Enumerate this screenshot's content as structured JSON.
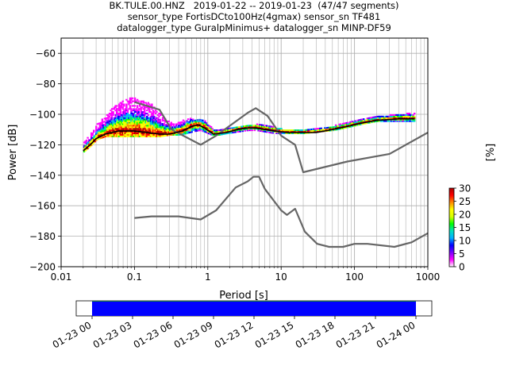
{
  "chart_data": {
    "type": "line",
    "title_lines": [
      "BK.TULE.00.HNZ   2019-01-22 -- 2019-01-23  (47/47 segments)",
      "sensor_type FortisDCto100Hz(4gmax) sensor_sn TF481",
      "datalogger_type GuralpMinimus+ datalogger_sn MINP-DF59"
    ],
    "xlabel": "Period [s]",
    "ylabel": "Power [dB]",
    "x_scale": "log",
    "xlim": [
      0.01,
      1000
    ],
    "ylim": [
      -200,
      -50
    ],
    "x_ticks": [
      0.01,
      0.1,
      1,
      10,
      100,
      1000
    ],
    "x_tick_labels": [
      "0.01",
      "0.1",
      "1",
      "10",
      "100",
      "1000"
    ],
    "y_ticks": [
      -200,
      -180,
      -160,
      -140,
      -120,
      -100,
      -80,
      -60
    ],
    "y_tick_labels": [
      "−200",
      "−180",
      "−160",
      "−140",
      "−120",
      "−100",
      "−80",
      "−60"
    ],
    "grid": true,
    "series": [
      {
        "role": "high-noise-model",
        "color": "#666666",
        "points": [
          [
            0.1,
            -92
          ],
          [
            0.22,
            -97
          ],
          [
            0.32,
            -110
          ],
          [
            0.8,
            -120
          ],
          [
            1.3,
            -114
          ],
          [
            3.5,
            -99
          ],
          [
            4.5,
            -96
          ],
          [
            6.5,
            -101
          ],
          [
            10,
            -114
          ],
          [
            15.5,
            -120
          ],
          [
            20,
            -138
          ],
          [
            80,
            -131
          ],
          [
            300,
            -126
          ],
          [
            1000,
            -112
          ]
        ]
      },
      {
        "role": "low-noise-model",
        "color": "#666666",
        "points": [
          [
            0.1,
            -168
          ],
          [
            0.17,
            -167
          ],
          [
            0.4,
            -167
          ],
          [
            0.8,
            -169
          ],
          [
            1.3,
            -163
          ],
          [
            2.4,
            -148
          ],
          [
            3.5,
            -144
          ],
          [
            4.2,
            -141
          ],
          [
            5,
            -141
          ],
          [
            6,
            -149
          ],
          [
            10,
            -163
          ],
          [
            12,
            -166
          ],
          [
            15.5,
            -162
          ],
          [
            21,
            -177
          ],
          [
            31,
            -185
          ],
          [
            45,
            -187
          ],
          [
            70,
            -187
          ],
          [
            100,
            -185
          ],
          [
            150,
            -185
          ],
          [
            350,
            -187
          ],
          [
            600,
            -184
          ],
          [
            1000,
            -178
          ]
        ]
      },
      {
        "role": "mean-psd",
        "color": "#000000",
        "points": [
          [
            0.02,
            -124
          ],
          [
            0.025,
            -120
          ],
          [
            0.03,
            -116
          ],
          [
            0.04,
            -113
          ],
          [
            0.06,
            -111
          ],
          [
            0.1,
            -111
          ],
          [
            0.15,
            -112
          ],
          [
            0.22,
            -113
          ],
          [
            0.3,
            -113
          ],
          [
            0.45,
            -111
          ],
          [
            0.6,
            -108
          ],
          [
            0.75,
            -107
          ],
          [
            0.9,
            -109
          ],
          [
            1.2,
            -113
          ],
          [
            1.8,
            -112
          ],
          [
            2.5,
            -110
          ],
          [
            3.5,
            -109
          ],
          [
            4.5,
            -109
          ],
          [
            6,
            -110
          ],
          [
            8,
            -111
          ],
          [
            12,
            -112
          ],
          [
            20,
            -112
          ],
          [
            30,
            -112
          ],
          [
            50,
            -110
          ],
          [
            80,
            -108
          ],
          [
            120,
            -106
          ],
          [
            200,
            -104
          ],
          [
            400,
            -103
          ],
          [
            650,
            -103
          ]
        ]
      }
    ],
    "psd_probability_band": {
      "periods": [
        0.02,
        0.025,
        0.03,
        0.04,
        0.05,
        0.06,
        0.08,
        0.1,
        0.13,
        0.17,
        0.22,
        0.3,
        0.4,
        0.5,
        0.6,
        0.75,
        0.9,
        1.1,
        1.4,
        1.8,
        2.5,
        3.5,
        4.5,
        6,
        8,
        12,
        20,
        30,
        50,
        80,
        120,
        200,
        400,
        650
      ],
      "upper_db": [
        -119,
        -113,
        -107,
        -101,
        -96,
        -93,
        -90,
        -90,
        -91,
        -94,
        -100,
        -106,
        -106,
        -103,
        -103,
        -103,
        -105,
        -109,
        -111,
        -110,
        -109,
        -108,
        -107,
        -108,
        -109,
        -111,
        -111,
        -110,
        -108,
        -106,
        -104,
        -102,
        -100,
        -100
      ],
      "lower_db": [
        -125,
        -121,
        -117,
        -115,
        -115,
        -115,
        -115,
        -115,
        -115,
        -115,
        -115,
        -114,
        -114,
        -113,
        -112,
        -111,
        -112,
        -114,
        -114,
        -113,
        -112,
        -111,
        -111,
        -112,
        -113,
        -113,
        -113,
        -112,
        -111,
        -109,
        -107,
        -105,
        -105,
        -105
      ]
    },
    "colorbar": {
      "label": "[%]",
      "range": [
        0,
        30
      ],
      "ticks": [
        0,
        5,
        10,
        15,
        20,
        25,
        30
      ],
      "colors": [
        "#ffffff",
        "#ff00ff",
        "#7a00ff",
        "#0000ff",
        "#00b0ff",
        "#00e0c0",
        "#00ff00",
        "#d8ff00",
        "#ffff00",
        "#ff8800",
        "#ff0000",
        "#aa0000"
      ]
    },
    "timeline": {
      "tick_labels": [
        "01-23 00",
        "01-23 03",
        "01-23 06",
        "01-23 09",
        "01-23 12",
        "01-23 15",
        "01-23 18",
        "01-23 21",
        "01-24 00"
      ],
      "coverage_colors": [
        "#008000",
        "#0000ff"
      ],
      "coverage_fraction": [
        0.045,
        0.955
      ]
    }
  }
}
